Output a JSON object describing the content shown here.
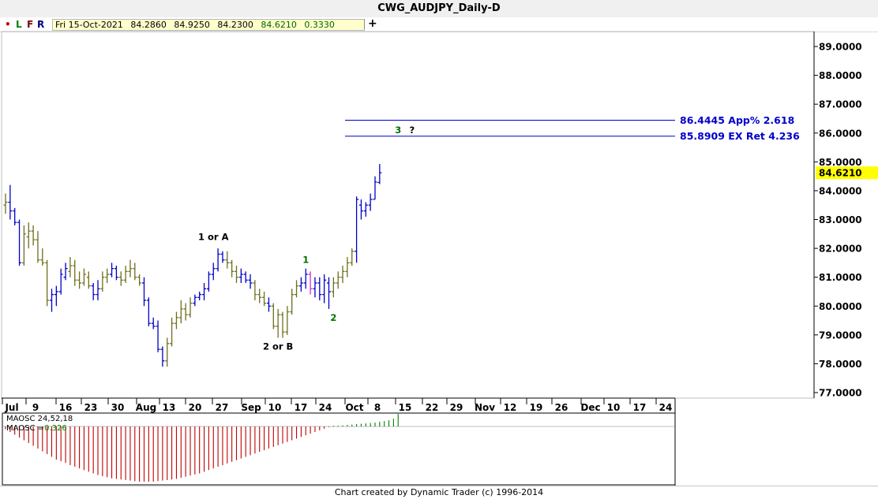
{
  "window": {
    "title": "CWG_AUDJPY_Daily-D"
  },
  "toolbar": {
    "letters": [
      {
        "text": "•",
        "color": "#cc0000"
      },
      {
        "text": "L",
        "color": "#008000"
      },
      {
        "text": "F",
        "color": "#800000"
      },
      {
        "text": "R",
        "color": "#000080"
      }
    ],
    "info": {
      "date": "Fri 15-Oct-2021",
      "open": "84.2860",
      "high": "84.9250",
      "low": "84.2300",
      "close": "84.6210",
      "change": "0.3330"
    },
    "add_icon": "plus-icon"
  },
  "chart_data": {
    "type": "ohlc-bar",
    "symbol": "CWG_AUDJPY",
    "timeframe": "Daily",
    "y_ticks": [
      "89.0000",
      "88.0000",
      "87.0000",
      "86.0000",
      "85.0000",
      "84.0000",
      "83.0000",
      "82.0000",
      "81.0000",
      "80.0000",
      "79.0000",
      "78.0000",
      "77.0000"
    ],
    "ylim": [
      77.0,
      89.3
    ],
    "last_price": "84.6210",
    "last_price_color": "#ffff00",
    "x_ticks": [
      "Jul",
      "9",
      "16",
      "23",
      "30",
      "Aug",
      "13",
      "20",
      "27",
      "Sep",
      "10",
      "17",
      "24",
      "Oct",
      "8",
      "15",
      "22",
      "29",
      "Nov",
      "12",
      "19",
      "26",
      "Dec",
      "10",
      "17",
      "24"
    ],
    "colors": {
      "down_bar": "#0000cc",
      "up_bar": "#6e6e1e",
      "wave_label_green": "#007000",
      "projection": "#0000cc"
    },
    "bars": [
      {
        "o": 83.5,
        "h": 83.9,
        "l": 83.2,
        "c": 83.6,
        "d": "up"
      },
      {
        "o": 83.6,
        "h": 84.2,
        "l": 83.0,
        "c": 83.3,
        "d": "down"
      },
      {
        "o": 83.3,
        "h": 83.4,
        "l": 82.8,
        "c": 82.9,
        "d": "down"
      },
      {
        "o": 82.9,
        "h": 83.0,
        "l": 81.4,
        "c": 81.5,
        "d": "down"
      },
      {
        "o": 81.5,
        "h": 82.8,
        "l": 81.4,
        "c": 82.5,
        "d": "up"
      },
      {
        "o": 82.4,
        "h": 82.9,
        "l": 82.0,
        "c": 82.6,
        "d": "up"
      },
      {
        "o": 82.6,
        "h": 82.8,
        "l": 82.1,
        "c": 82.3,
        "d": "up"
      },
      {
        "o": 82.3,
        "h": 82.6,
        "l": 81.5,
        "c": 81.6,
        "d": "up"
      },
      {
        "o": 81.6,
        "h": 82.0,
        "l": 81.4,
        "c": 81.5,
        "d": "up"
      },
      {
        "o": 81.5,
        "h": 81.6,
        "l": 80.0,
        "c": 80.2,
        "d": "up"
      },
      {
        "o": 80.2,
        "h": 80.6,
        "l": 79.8,
        "c": 80.4,
        "d": "down"
      },
      {
        "o": 80.4,
        "h": 80.7,
        "l": 80.0,
        "c": 80.5,
        "d": "down"
      },
      {
        "o": 80.5,
        "h": 81.3,
        "l": 80.4,
        "c": 81.1,
        "d": "down"
      },
      {
        "o": 81.0,
        "h": 81.5,
        "l": 80.9,
        "c": 81.3,
        "d": "down"
      },
      {
        "o": 81.2,
        "h": 81.7,
        "l": 81.0,
        "c": 81.4,
        "d": "up"
      },
      {
        "o": 81.4,
        "h": 81.6,
        "l": 80.7,
        "c": 80.9,
        "d": "up"
      },
      {
        "o": 80.9,
        "h": 81.2,
        "l": 80.6,
        "c": 80.8,
        "d": "up"
      },
      {
        "o": 80.8,
        "h": 81.3,
        "l": 80.7,
        "c": 81.1,
        "d": "up"
      },
      {
        "o": 81.0,
        "h": 81.2,
        "l": 80.6,
        "c": 80.7,
        "d": "up"
      },
      {
        "o": 80.7,
        "h": 80.8,
        "l": 80.2,
        "c": 80.4,
        "d": "down"
      },
      {
        "o": 80.4,
        "h": 80.9,
        "l": 80.2,
        "c": 80.6,
        "d": "down"
      },
      {
        "o": 80.6,
        "h": 81.2,
        "l": 80.5,
        "c": 81.0,
        "d": "up"
      },
      {
        "o": 81.0,
        "h": 81.3,
        "l": 80.8,
        "c": 81.1,
        "d": "up"
      },
      {
        "o": 81.1,
        "h": 81.5,
        "l": 81.0,
        "c": 81.3,
        "d": "down"
      },
      {
        "o": 81.3,
        "h": 81.4,
        "l": 80.9,
        "c": 81.0,
        "d": "down"
      },
      {
        "o": 81.0,
        "h": 81.2,
        "l": 80.7,
        "c": 80.9,
        "d": "up"
      },
      {
        "o": 80.9,
        "h": 81.4,
        "l": 80.8,
        "c": 81.2,
        "d": "up"
      },
      {
        "o": 81.2,
        "h": 81.6,
        "l": 81.0,
        "c": 81.3,
        "d": "up"
      },
      {
        "o": 81.3,
        "h": 81.5,
        "l": 80.9,
        "c": 81.0,
        "d": "up"
      },
      {
        "o": 81.0,
        "h": 81.1,
        "l": 80.7,
        "c": 80.8,
        "d": "up"
      },
      {
        "o": 80.8,
        "h": 81.0,
        "l": 80.0,
        "c": 80.2,
        "d": "down"
      },
      {
        "o": 80.2,
        "h": 80.3,
        "l": 79.3,
        "c": 79.4,
        "d": "down"
      },
      {
        "o": 79.4,
        "h": 79.6,
        "l": 79.2,
        "c": 79.3,
        "d": "down"
      },
      {
        "o": 79.3,
        "h": 79.5,
        "l": 78.4,
        "c": 78.5,
        "d": "down"
      },
      {
        "o": 78.5,
        "h": 78.6,
        "l": 77.9,
        "c": 78.1,
        "d": "down"
      },
      {
        "o": 78.1,
        "h": 78.9,
        "l": 77.9,
        "c": 78.7,
        "d": "up"
      },
      {
        "o": 78.7,
        "h": 79.6,
        "l": 78.6,
        "c": 79.4,
        "d": "up"
      },
      {
        "o": 79.4,
        "h": 79.8,
        "l": 79.2,
        "c": 79.6,
        "d": "up"
      },
      {
        "o": 79.6,
        "h": 80.2,
        "l": 79.4,
        "c": 79.9,
        "d": "up"
      },
      {
        "o": 79.9,
        "h": 80.1,
        "l": 79.5,
        "c": 79.7,
        "d": "up"
      },
      {
        "o": 79.7,
        "h": 80.3,
        "l": 79.6,
        "c": 80.1,
        "d": "up"
      },
      {
        "o": 80.1,
        "h": 80.4,
        "l": 80.0,
        "c": 80.3,
        "d": "down"
      },
      {
        "o": 80.3,
        "h": 80.5,
        "l": 80.2,
        "c": 80.4,
        "d": "down"
      },
      {
        "o": 80.4,
        "h": 80.8,
        "l": 80.2,
        "c": 80.6,
        "d": "down"
      },
      {
        "o": 80.6,
        "h": 81.2,
        "l": 80.5,
        "c": 81.1,
        "d": "down"
      },
      {
        "o": 81.1,
        "h": 81.5,
        "l": 80.9,
        "c": 81.3,
        "d": "down"
      },
      {
        "o": 81.3,
        "h": 82.0,
        "l": 81.2,
        "c": 81.8,
        "d": "down"
      },
      {
        "o": 81.8,
        "h": 81.9,
        "l": 81.5,
        "c": 81.6,
        "d": "down"
      },
      {
        "o": 81.6,
        "h": 81.9,
        "l": 81.3,
        "c": 81.5,
        "d": "up"
      },
      {
        "o": 81.5,
        "h": 81.6,
        "l": 81.0,
        "c": 81.2,
        "d": "up"
      },
      {
        "o": 81.2,
        "h": 81.4,
        "l": 80.8,
        "c": 81.0,
        "d": "up"
      },
      {
        "o": 81.0,
        "h": 81.3,
        "l": 80.8,
        "c": 81.1,
        "d": "down"
      },
      {
        "o": 81.1,
        "h": 81.2,
        "l": 80.8,
        "c": 80.9,
        "d": "down"
      },
      {
        "o": 80.9,
        "h": 81.1,
        "l": 80.6,
        "c": 80.8,
        "d": "down"
      },
      {
        "o": 80.8,
        "h": 80.9,
        "l": 80.2,
        "c": 80.4,
        "d": "up"
      },
      {
        "o": 80.4,
        "h": 80.6,
        "l": 80.1,
        "c": 80.3,
        "d": "up"
      },
      {
        "o": 80.3,
        "h": 80.5,
        "l": 80.0,
        "c": 80.1,
        "d": "up"
      },
      {
        "o": 80.1,
        "h": 80.3,
        "l": 79.8,
        "c": 80.0,
        "d": "down"
      },
      {
        "o": 80.0,
        "h": 80.1,
        "l": 79.2,
        "c": 79.3,
        "d": "up"
      },
      {
        "o": 79.3,
        "h": 79.9,
        "l": 78.9,
        "c": 79.7,
        "d": "up"
      },
      {
        "o": 79.7,
        "h": 79.8,
        "l": 78.9,
        "c": 79.1,
        "d": "up"
      },
      {
        "o": 79.1,
        "h": 80.0,
        "l": 79.0,
        "c": 79.8,
        "d": "up"
      },
      {
        "o": 79.8,
        "h": 80.6,
        "l": 79.7,
        "c": 80.4,
        "d": "up"
      },
      {
        "o": 80.4,
        "h": 80.9,
        "l": 80.3,
        "c": 80.7,
        "d": "up"
      },
      {
        "o": 80.7,
        "h": 81.0,
        "l": 80.5,
        "c": 80.8,
        "d": "down"
      },
      {
        "o": 80.8,
        "h": 81.3,
        "l": 80.6,
        "c": 81.1,
        "d": "down"
      },
      {
        "o": 81.1,
        "h": 81.2,
        "l": 80.4,
        "c": 80.6,
        "d": "magenta"
      },
      {
        "o": 80.6,
        "h": 81.0,
        "l": 80.3,
        "c": 80.8,
        "d": "down"
      },
      {
        "o": 80.8,
        "h": 81.0,
        "l": 80.2,
        "c": 80.4,
        "d": "down"
      },
      {
        "o": 80.4,
        "h": 81.1,
        "l": 80.1,
        "c": 80.9,
        "d": "down"
      },
      {
        "o": 80.8,
        "h": 81.0,
        "l": 79.9,
        "c": 80.5,
        "d": "down"
      },
      {
        "o": 80.5,
        "h": 81.0,
        "l": 80.3,
        "c": 80.8,
        "d": "up"
      },
      {
        "o": 80.8,
        "h": 81.2,
        "l": 80.6,
        "c": 81.0,
        "d": "up"
      },
      {
        "o": 81.0,
        "h": 81.4,
        "l": 80.8,
        "c": 81.2,
        "d": "up"
      },
      {
        "o": 81.2,
        "h": 81.7,
        "l": 81.0,
        "c": 81.5,
        "d": "up"
      },
      {
        "o": 81.5,
        "h": 82.0,
        "l": 81.4,
        "c": 81.9,
        "d": "up"
      },
      {
        "o": 81.9,
        "h": 83.8,
        "l": 81.5,
        "c": 83.7,
        "d": "down"
      },
      {
        "o": 83.5,
        "h": 83.7,
        "l": 83.0,
        "c": 83.3,
        "d": "down"
      },
      {
        "o": 83.3,
        "h": 83.6,
        "l": 83.1,
        "c": 83.5,
        "d": "down"
      },
      {
        "o": 83.5,
        "h": 83.9,
        "l": 83.3,
        "c": 83.7,
        "d": "down"
      },
      {
        "o": 83.7,
        "h": 84.5,
        "l": 83.7,
        "c": 84.3,
        "d": "down"
      },
      {
        "o": 84.286,
        "h": 84.925,
        "l": 84.23,
        "c": 84.621,
        "d": "down"
      }
    ],
    "projections": [
      {
        "value": 86.4445,
        "label": "86.4445 App% 2.618"
      },
      {
        "value": 85.8909,
        "label": "85.8909 EX Ret 4.236"
      }
    ],
    "wave_labels": [
      {
        "text": "1 or A",
        "bar": 45,
        "price": 82.4,
        "color": "#000000"
      },
      {
        "text": "2 or B",
        "bar": 59,
        "price": 78.6,
        "color": "#000000"
      },
      {
        "text": "1",
        "bar": 65,
        "price": 81.6,
        "color": "#007000"
      },
      {
        "text": "2",
        "bar": 71,
        "price": 79.6,
        "color": "#007000"
      },
      {
        "text": "3",
        "bar": 85,
        "price": 86.1,
        "color": "#007000"
      },
      {
        "text": "?",
        "bar": 88,
        "price": 86.1,
        "color": "#000000"
      }
    ],
    "oscillator": {
      "title": "MAOSC 24,52,18",
      "value_label": "MAOSC =",
      "value": "0.326",
      "value_color": "#008000",
      "pos_color": "#008000",
      "neg_color": "#c00000",
      "values": [
        -0.05,
        -0.1,
        -0.15,
        -0.2,
        -0.25,
        -0.3,
        -0.35,
        -0.4,
        -0.45,
        -0.5,
        -0.55,
        -0.6,
        -0.63,
        -0.66,
        -0.7,
        -0.73,
        -0.76,
        -0.79,
        -0.82,
        -0.85,
        -0.88,
        -0.9,
        -0.92,
        -0.94,
        -0.95,
        -0.96,
        -0.97,
        -0.98,
        -0.99,
        -1.0,
        -1.0,
        -1.0,
        -1.0,
        -0.99,
        -0.98,
        -0.97,
        -0.96,
        -0.95,
        -0.93,
        -0.91,
        -0.89,
        -0.87,
        -0.85,
        -0.82,
        -0.79,
        -0.76,
        -0.73,
        -0.7,
        -0.67,
        -0.64,
        -0.61,
        -0.58,
        -0.55,
        -0.52,
        -0.49,
        -0.46,
        -0.43,
        -0.4,
        -0.37,
        -0.34,
        -0.31,
        -0.28,
        -0.25,
        -0.22,
        -0.19,
        -0.16,
        -0.13,
        -0.1,
        -0.07,
        -0.04,
        -0.01,
        0.01,
        0.02,
        0.03,
        0.04,
        0.05,
        0.06,
        0.07,
        0.08,
        0.09,
        0.1,
        0.12,
        0.14,
        0.16,
        0.2,
        0.326
      ]
    }
  },
  "footer": {
    "text": "Chart created by Dynamic Trader  (c) 1996-2014"
  }
}
